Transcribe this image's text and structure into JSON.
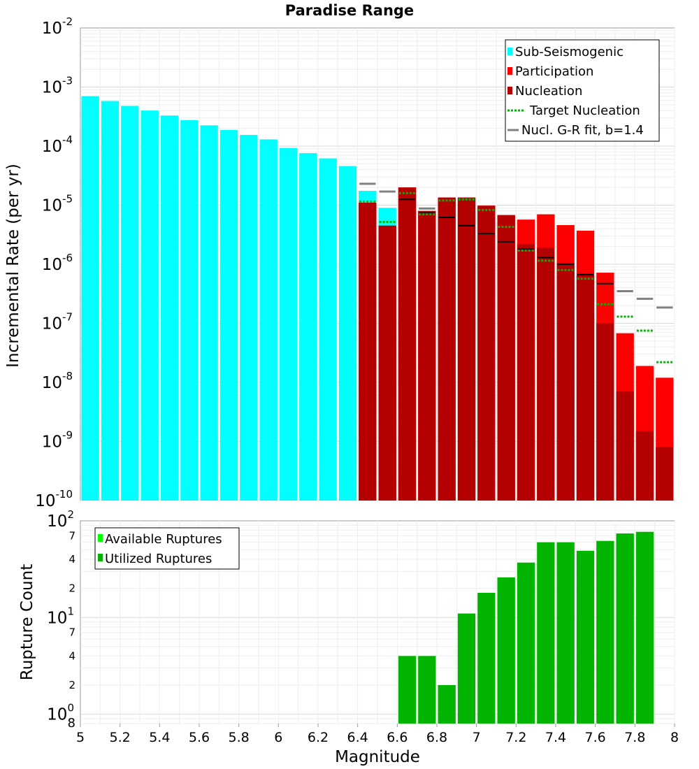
{
  "chart_data": [
    {
      "type": "bar",
      "title": "Paradise Range",
      "xlabel": "Magnitude",
      "ylabel": "Incremental Rate (per yr)",
      "yscale": "log",
      "ylim": [
        1e-10,
        0.01
      ],
      "xlim": [
        5,
        8
      ],
      "y_tick_labels": [
        {
          "base": "10",
          "exp": "-10",
          "value": 1e-10
        },
        {
          "base": "10",
          "exp": "-9",
          "value": 1e-09
        },
        {
          "base": "10",
          "exp": "-8",
          "value": 1e-08
        },
        {
          "base": "10",
          "exp": "-7",
          "value": 1e-07
        },
        {
          "base": "10",
          "exp": "-6",
          "value": 1e-06
        },
        {
          "base": "10",
          "exp": "-5",
          "value": 1e-05
        },
        {
          "base": "10",
          "exp": "-4",
          "value": 0.0001
        },
        {
          "base": "10",
          "exp": "-3",
          "value": 0.001
        },
        {
          "base": "10",
          "exp": "-2",
          "value": 0.01
        }
      ],
      "legend_position": "top-right",
      "legend": [
        {
          "label": "Sub-Seismogenic",
          "color": "#00ffff",
          "style": "box"
        },
        {
          "label": "Participation",
          "color": "#ff0000",
          "style": "box"
        },
        {
          "label": "Nucleation",
          "color": "#b40000",
          "style": "box"
        },
        {
          "label": "Target Nucleation",
          "color": "#00b400",
          "style": "dots"
        },
        {
          "label": "Nucl. G-R fit, b=1.4",
          "color": "#808080",
          "style": "line"
        }
      ],
      "series": [
        {
          "name": "Sub-Seismogenic",
          "color": "#00ffff",
          "x": [
            5.05,
            5.15,
            5.25,
            5.35,
            5.45,
            5.55,
            5.65,
            5.75,
            5.85,
            5.95,
            6.05,
            6.15,
            6.25,
            6.35,
            6.45,
            6.55
          ],
          "values": [
            0.0007,
            0.00058,
            0.00048,
            0.0004,
            0.00033,
            0.000275,
            0.000225,
            0.000188,
            0.000155,
            0.00013,
            9.3e-05,
            7.6e-05,
            6.2e-05,
            4.6e-05,
            1.75e-05,
            9e-06
          ]
        },
        {
          "name": "Participation",
          "color": "#ff0000",
          "x": [
            6.45,
            6.55,
            6.65,
            6.75,
            6.85,
            6.95,
            7.05,
            7.15,
            7.25,
            7.35,
            7.45,
            7.55,
            7.65,
            7.75,
            7.85,
            7.95
          ],
          "values": [
            1.1e-05,
            4.5e-06,
            2e-05,
            8e-06,
            1.35e-05,
            1.35e-05,
            9.8e-06,
            6.8e-06,
            5.7e-06,
            7e-06,
            4.6e-06,
            3.7e-06,
            7.2e-07,
            6.8e-08,
            1.9e-08,
            1.2e-08
          ]
        },
        {
          "name": "Nucleation",
          "color": "#b40000",
          "x": [
            6.45,
            6.55,
            6.65,
            6.75,
            6.85,
            6.95,
            7.05,
            7.15,
            7.25,
            7.35,
            7.45,
            7.55,
            7.65,
            7.75,
            7.85,
            7.95
          ],
          "values": [
            1.1e-05,
            4.5e-06,
            2e-05,
            8e-06,
            1.35e-05,
            1.35e-05,
            9.8e-06,
            6.8e-06,
            2.2e-06,
            1.9e-06,
            1.05e-06,
            6.5e-07,
            1e-07,
            7e-09,
            1.5e-09,
            8e-10
          ]
        },
        {
          "name": "Nucleation (black marks)",
          "color": "#000000",
          "x": [
            6.65,
            6.75,
            6.85,
            6.95,
            7.05,
            7.15,
            7.25,
            7.35,
            7.45,
            7.55,
            7.65
          ],
          "values": [
            1.25e-05,
            7.5e-06,
            6.2e-06,
            4.5e-06,
            3.3e-06,
            2.4e-06,
            1.8e-06,
            1.3e-06,
            1e-06,
            6.7e-07,
            4.7e-07
          ]
        },
        {
          "name": "Target Nucleation",
          "color": "#00b400",
          "x": [
            6.45,
            6.55,
            6.65,
            6.75,
            6.85,
            6.95,
            7.05,
            7.15,
            7.25,
            7.35,
            7.45,
            7.55,
            7.65,
            7.75,
            7.85,
            7.95
          ],
          "values": [
            1.15e-05,
            5.2e-06,
            1.6e-05,
            7e-06,
            1.2e-05,
            1.25e-05,
            8.3e-06,
            4.3e-06,
            1.7e-06,
            1.15e-06,
            8e-07,
            5.7e-07,
            2.1e-07,
            1.3e-07,
            7.5e-08,
            2.2e-08
          ]
        },
        {
          "name": "Nucl. G-R fit, b=1.4",
          "color": "#808080",
          "x": [
            6.45,
            6.55,
            6.75,
            7.75,
            7.85,
            7.95
          ],
          "values": [
            2.3e-05,
            1.7e-05,
            8.8e-06,
            3.5e-07,
            2.6e-07,
            1.85e-07
          ]
        }
      ]
    },
    {
      "type": "bar",
      "title": "",
      "xlabel": "Magnitude",
      "ylabel": "Rupture Count",
      "yscale": "log",
      "ylim": [
        0.8,
        100
      ],
      "xlim": [
        5,
        8
      ],
      "x_ticks": [
        "5",
        "5.2",
        "5.4",
        "5.6",
        "5.8",
        "6",
        "6.2",
        "6.4",
        "6.6",
        "6.8",
        "7",
        "7.2",
        "7.4",
        "7.6",
        "7.8",
        "8"
      ],
      "y_major_labels": [
        {
          "base": "10",
          "exp": "0",
          "value": 1
        },
        {
          "base": "10",
          "exp": "1",
          "value": 10
        },
        {
          "base": "10",
          "exp": "2",
          "value": 100
        }
      ],
      "y_minor_labels": [
        {
          "label": "8",
          "value": 0.8
        },
        {
          "label": "2",
          "value": 2
        },
        {
          "label": "4",
          "value": 4
        },
        {
          "label": "7",
          "value": 7
        },
        {
          "label": "2",
          "value": 20
        },
        {
          "label": "4",
          "value": 40
        },
        {
          "label": "7",
          "value": 70
        }
      ],
      "legend_position": "top-left",
      "legend": [
        {
          "label": "Available Ruptures",
          "color": "#00ff00",
          "style": "box"
        },
        {
          "label": "Utilized Ruptures",
          "color": "#00b400",
          "style": "box"
        }
      ],
      "series": [
        {
          "name": "Utilized Ruptures",
          "color": "#00b400",
          "x": [
            6.65,
            6.75,
            6.85,
            6.95,
            7.05,
            7.15,
            7.25,
            7.35,
            7.45,
            7.55,
            7.65,
            7.75,
            7.85
          ],
          "values": [
            4,
            4,
            2,
            11,
            18,
            26,
            37,
            60,
            60,
            49,
            62,
            74,
            77
          ]
        }
      ]
    }
  ]
}
